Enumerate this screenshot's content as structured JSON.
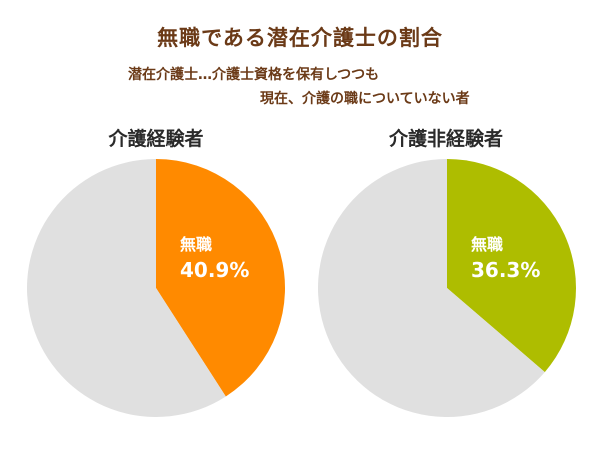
{
  "title": "無職である潜在介護士の割合",
  "note": {
    "line1": "潜在介護士…介護士資格を保有しつつも",
    "line2": "現在、介護の職についていない者"
  },
  "chart_data": [
    {
      "type": "pie",
      "title": "介護経験者",
      "slices": [
        {
          "label": "無職",
          "value": 40.9,
          "value_label": "40.9%",
          "color": "#ff8a00"
        },
        {
          "label": "",
          "value": 59.1,
          "color": "#e0e0e0"
        }
      ]
    },
    {
      "type": "pie",
      "title": "介護非経験者",
      "slices": [
        {
          "label": "無職",
          "value": 36.3,
          "value_label": "36.3%",
          "color": "#aebd00"
        },
        {
          "label": "",
          "value": 63.7,
          "color": "#e0e0e0"
        }
      ]
    }
  ]
}
